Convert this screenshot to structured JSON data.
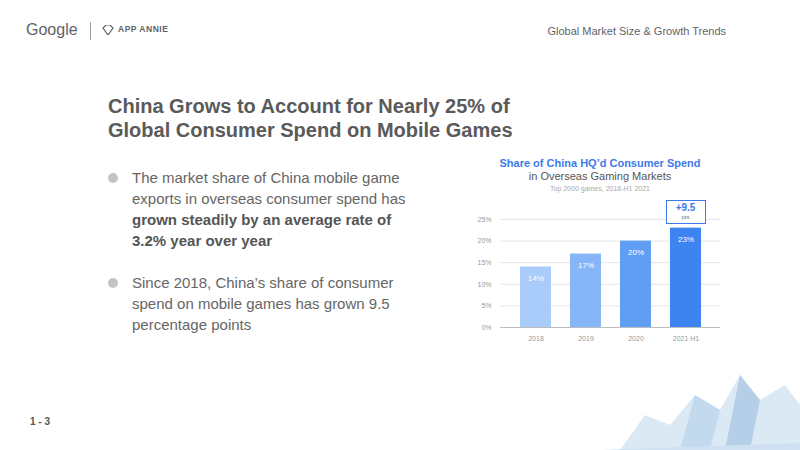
{
  "page": {
    "logo": "Google",
    "brand": "APP ANNIE",
    "section": "Global Market Size & Growth Trends",
    "title": "China Grows to Account for Nearly 25% of Global Consumer Spend on Mobile Games",
    "bullets": [
      {
        "text": "The market share of China mobile game exports in overseas consumer spend has",
        "emphasis": "grown steadily by an average rate of 3.2% year over year"
      },
      {
        "text": "Since 2018, China’s share of consumer spend on mobile games has grown 9.5 percentage points"
      }
    ],
    "page_number": "1 - 3"
  },
  "chart_data": {
    "type": "bar",
    "title": "Share of China HQ’d Consumer Spend",
    "subtitle": "in Overseas Gaming Markets",
    "caption": "Top 2000 games, 2018-H1 2021",
    "categories": [
      "2018",
      "2019",
      "2020",
      "2021 H1"
    ],
    "values": [
      14,
      17,
      20,
      23
    ],
    "value_labels": [
      "14%",
      "17%",
      "20%",
      "23%"
    ],
    "colors": [
      "#a9ccfa",
      "#86b6f7",
      "#5f9ef3",
      "#3d84f0"
    ],
    "ylim": [
      0,
      25
    ],
    "yticks": [
      {
        "value": 0,
        "label": "0%"
      },
      {
        "value": 5,
        "label": "5%"
      },
      {
        "value": 10,
        "label": "10%"
      },
      {
        "value": 15,
        "label": "15%"
      },
      {
        "value": 20,
        "label": "20%"
      },
      {
        "value": 25,
        "label": "25%"
      }
    ],
    "grid": true,
    "data_labels": true,
    "annotations": [
      "+9.5",
      "pts"
    ]
  }
}
